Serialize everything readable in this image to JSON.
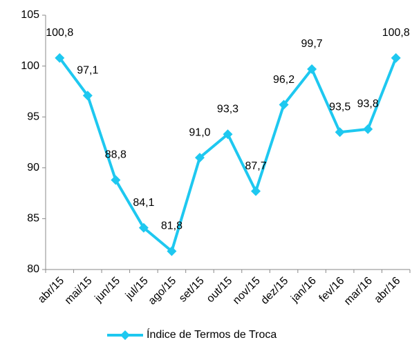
{
  "chart_data": {
    "type": "line",
    "categories": [
      "abr/15",
      "mai/15",
      "jun/15",
      "jul/15",
      "ago/15",
      "set/15",
      "out/15",
      "nov/15",
      "dez/15",
      "jan/16",
      "fev/16",
      "mar/16",
      "abr/16"
    ],
    "series": [
      {
        "name": "Índice de Termos de Troca",
        "color": "#1ec8f0",
        "values": [
          100.8,
          97.1,
          88.8,
          84.1,
          81.8,
          91.0,
          93.3,
          87.7,
          96.2,
          99.7,
          93.5,
          93.8,
          100.8
        ],
        "value_labels": [
          "100,8",
          "97,1",
          "88,8",
          "84,1",
          "81,8",
          "91,0",
          "93,3",
          "87,7",
          "96,2",
          "99,7",
          "93,5",
          "93,8",
          "100,8"
        ]
      }
    ],
    "ylim": [
      80,
      105
    ],
    "yticks": [
      80,
      85,
      90,
      95,
      100,
      105
    ],
    "grid": false,
    "legend": "bottom"
  }
}
